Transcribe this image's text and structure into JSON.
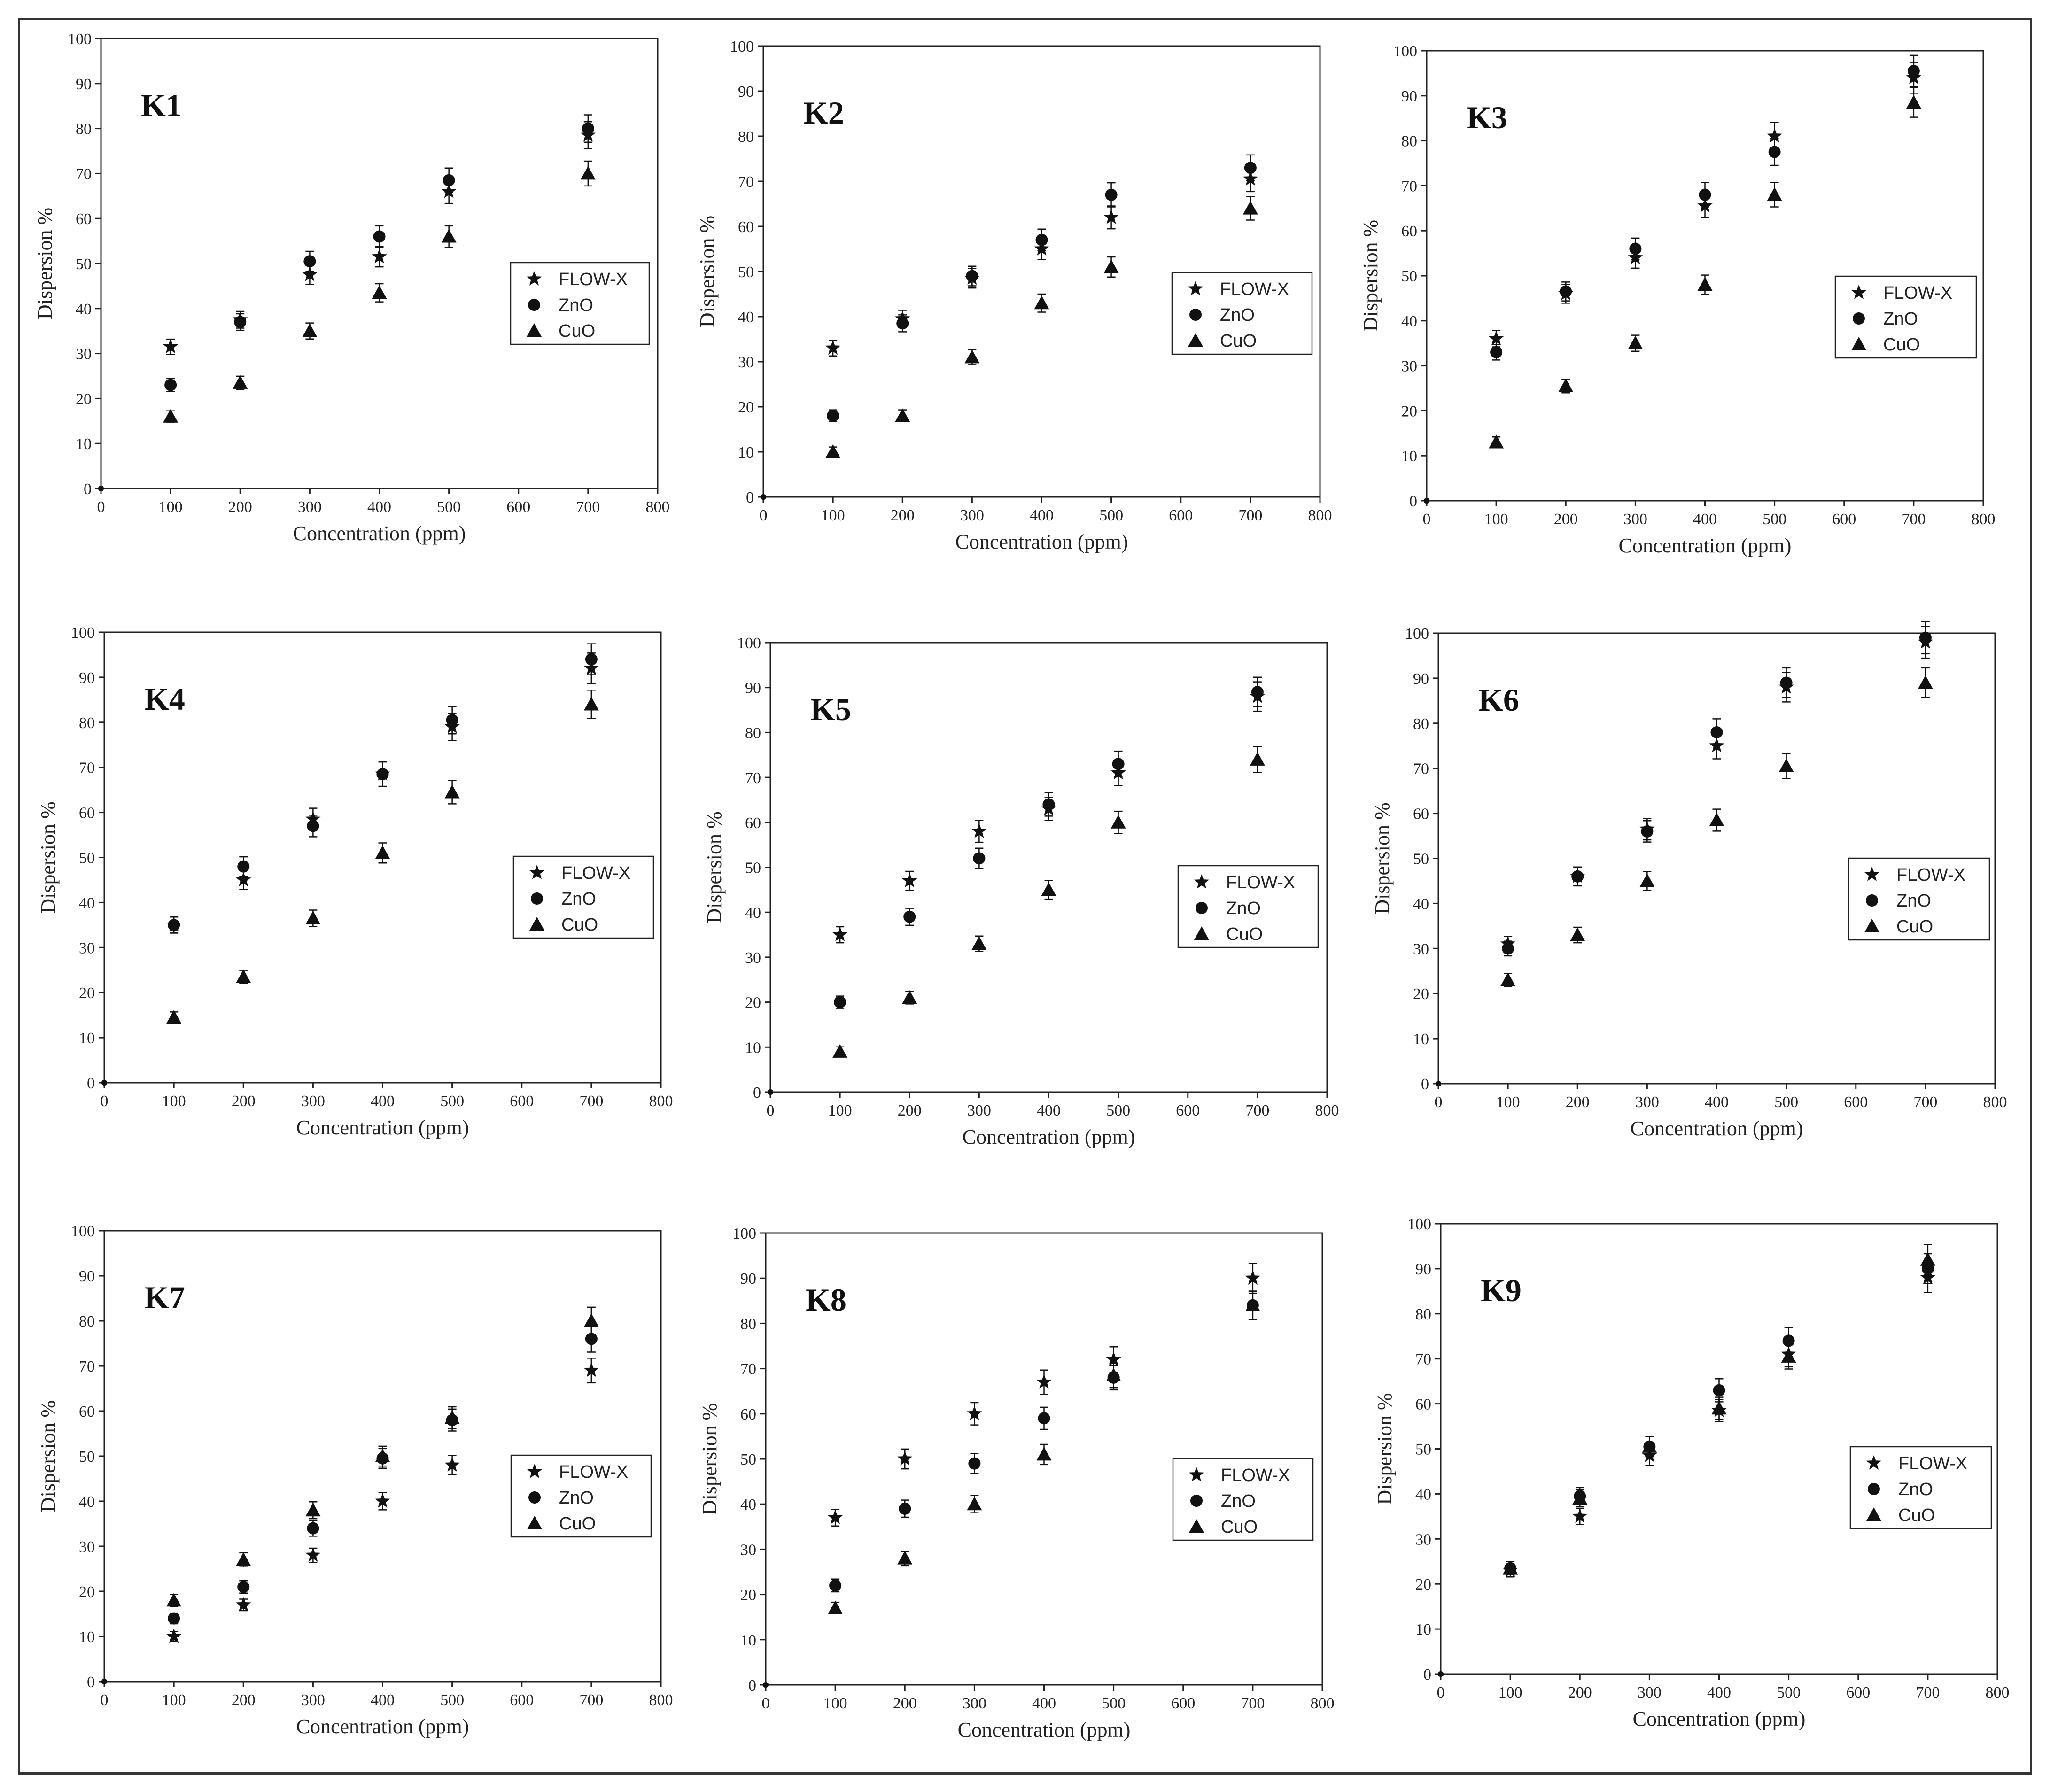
{
  "chart_data": [
    {
      "type": "scatter",
      "title": "K1",
      "xlabel": "Concentration (ppm)",
      "ylabel": "Dispersion %",
      "xlim": [
        0,
        800
      ],
      "ylim": [
        0,
        100
      ],
      "x": [
        0,
        100,
        200,
        300,
        400,
        500,
        700
      ],
      "series": [
        {
          "name": "FLOW-X",
          "marker": "star",
          "values": [
            0,
            31.5,
            37.5,
            47.5,
            51.5,
            66,
            78.5
          ]
        },
        {
          "name": "ZnO",
          "marker": "circle",
          "values": [
            0,
            23,
            37,
            50.5,
            56,
            68.5,
            80
          ]
        },
        {
          "name": "CuO",
          "marker": "triangle",
          "values": [
            0,
            16,
            23.5,
            35,
            43.5,
            56,
            70
          ]
        }
      ]
    },
    {
      "type": "scatter",
      "title": "K2",
      "xlabel": "Concentration (ppm)",
      "ylabel": "Dispersion %",
      "xlim": [
        0,
        800
      ],
      "ylim": [
        0,
        100
      ],
      "x": [
        0,
        100,
        200,
        300,
        400,
        500,
        700
      ],
      "series": [
        {
          "name": "FLOW-X",
          "marker": "star",
          "values": [
            0,
            33,
            39.5,
            48.5,
            55,
            62,
            70.5
          ]
        },
        {
          "name": "ZnO",
          "marker": "circle",
          "values": [
            0,
            18,
            38.5,
            49,
            57,
            67,
            73
          ]
        },
        {
          "name": "CuO",
          "marker": "triangle",
          "values": [
            0,
            10,
            18,
            31,
            43,
            51,
            64
          ]
        }
      ]
    },
    {
      "type": "scatter",
      "title": "K3",
      "xlabel": "Concentration (ppm)",
      "ylabel": "Dispersion %",
      "xlim": [
        0,
        800
      ],
      "ylim": [
        0,
        100
      ],
      "x": [
        0,
        100,
        200,
        300,
        400,
        500,
        700
      ],
      "series": [
        {
          "name": "FLOW-X",
          "marker": "star",
          "values": [
            0,
            36,
            46,
            54,
            65.5,
            81,
            94
          ]
        },
        {
          "name": "ZnO",
          "marker": "circle",
          "values": [
            0,
            33,
            46.5,
            56,
            68,
            77.5,
            95.5
          ]
        },
        {
          "name": "CuO",
          "marker": "triangle",
          "values": [
            0,
            13,
            25.5,
            35,
            48,
            68,
            88.5
          ]
        }
      ]
    },
    {
      "type": "scatter",
      "title": "K4",
      "xlabel": "Concentration (ppm)",
      "ylabel": "Dispersion %",
      "xlim": [
        0,
        800
      ],
      "ylim": [
        0,
        100
      ],
      "x": [
        0,
        100,
        200,
        300,
        400,
        500,
        700
      ],
      "series": [
        {
          "name": "FLOW-X",
          "marker": "star",
          "values": [
            0,
            35,
            45,
            58.5,
            68.5,
            79,
            92
          ]
        },
        {
          "name": "ZnO",
          "marker": "circle",
          "values": [
            0,
            35,
            48,
            57,
            68.5,
            80.5,
            94
          ]
        },
        {
          "name": "CuO",
          "marker": "triangle",
          "values": [
            0,
            14.5,
            23.5,
            36.5,
            51,
            64.5,
            84
          ]
        }
      ]
    },
    {
      "type": "scatter",
      "title": "K5",
      "xlabel": "Concentration (ppm)",
      "ylabel": "Dispersion %",
      "xlim": [
        0,
        800
      ],
      "ylim": [
        0,
        100
      ],
      "x": [
        0,
        100,
        200,
        300,
        400,
        500,
        700
      ],
      "series": [
        {
          "name": "FLOW-X",
          "marker": "star",
          "values": [
            0,
            35,
            47,
            58,
            63,
            71,
            88
          ]
        },
        {
          "name": "ZnO",
          "marker": "circle",
          "values": [
            0,
            20,
            39,
            52,
            64,
            73,
            89
          ]
        },
        {
          "name": "CuO",
          "marker": "triangle",
          "values": [
            0,
            9,
            21,
            33,
            45,
            60,
            74
          ]
        }
      ]
    },
    {
      "type": "scatter",
      "title": "K6",
      "xlabel": "Concentration (ppm)",
      "ylabel": "Dispersion %",
      "xlim": [
        0,
        800
      ],
      "ylim": [
        0,
        100
      ],
      "x": [
        0,
        100,
        200,
        300,
        400,
        500,
        700
      ],
      "series": [
        {
          "name": "FLOW-X",
          "marker": "star",
          "values": [
            0,
            31,
            46,
            56.5,
            75,
            88,
            98
          ]
        },
        {
          "name": "ZnO",
          "marker": "circle",
          "values": [
            0,
            30,
            46,
            56,
            78,
            89,
            99
          ]
        },
        {
          "name": "CuO",
          "marker": "triangle",
          "values": [
            0,
            23,
            33,
            45,
            58.5,
            70.5,
            89
          ]
        }
      ]
    },
    {
      "type": "scatter",
      "title": "K7",
      "xlabel": "Concentration (ppm)",
      "ylabel": "Dispersion %",
      "xlim": [
        0,
        800
      ],
      "ylim": [
        0,
        100
      ],
      "x": [
        0,
        100,
        200,
        300,
        400,
        500,
        700
      ],
      "series": [
        {
          "name": "FLOW-X",
          "marker": "star",
          "values": [
            0,
            10,
            17,
            28,
            40,
            48,
            69
          ]
        },
        {
          "name": "ZnO",
          "marker": "circle",
          "values": [
            0,
            14,
            21,
            34,
            49.5,
            58,
            76
          ]
        },
        {
          "name": "CuO",
          "marker": "triangle",
          "values": [
            0,
            18,
            27,
            38,
            50,
            58.5,
            80
          ]
        }
      ]
    },
    {
      "type": "scatter",
      "title": "K8",
      "xlabel": "Concentration (ppm)",
      "ylabel": "Dispersion %",
      "xlim": [
        0,
        800
      ],
      "ylim": [
        0,
        100
      ],
      "x": [
        0,
        100,
        200,
        300,
        400,
        500,
        700
      ],
      "series": [
        {
          "name": "FLOW-X",
          "marker": "star",
          "values": [
            0,
            37,
            50,
            60,
            67,
            72,
            90
          ]
        },
        {
          "name": "ZnO",
          "marker": "circle",
          "values": [
            0,
            22,
            39,
            49,
            59,
            68,
            84
          ]
        },
        {
          "name": "CuO",
          "marker": "triangle",
          "values": [
            0,
            17,
            28,
            40,
            51,
            68.5,
            84
          ]
        }
      ]
    },
    {
      "type": "scatter",
      "title": "K9",
      "xlabel": "Concentration (ppm)",
      "ylabel": "Dispersion %",
      "xlim": [
        0,
        800
      ],
      "ylim": [
        0,
        100
      ],
      "x": [
        0,
        100,
        200,
        300,
        400,
        500,
        700
      ],
      "series": [
        {
          "name": "FLOW-X",
          "marker": "star",
          "values": [
            0,
            23,
            35,
            48.5,
            58.5,
            71,
            88
          ]
        },
        {
          "name": "ZnO",
          "marker": "circle",
          "values": [
            0,
            23.5,
            39.5,
            50.5,
            63,
            74,
            90
          ]
        },
        {
          "name": "CuO",
          "marker": "triangle",
          "values": [
            0,
            23.5,
            39,
            50.5,
            59,
            70.5,
            92
          ]
        }
      ]
    }
  ],
  "axis": {
    "x_ticks": [
      "0",
      "100",
      "200",
      "300",
      "400",
      "500",
      "600",
      "700",
      "800"
    ],
    "y_ticks": [
      "0",
      "10",
      "20",
      "30",
      "40",
      "50",
      "60",
      "70",
      "80",
      "90",
      "100"
    ],
    "x_label": "Concentration (ppm)",
    "y_label": "Dispersion %"
  },
  "legend_labels": [
    "FLOW-X",
    "ZnO",
    "CuO"
  ],
  "colors": {
    "marker": "#111111",
    "axis": "#222222",
    "background": "#ffffff"
  }
}
